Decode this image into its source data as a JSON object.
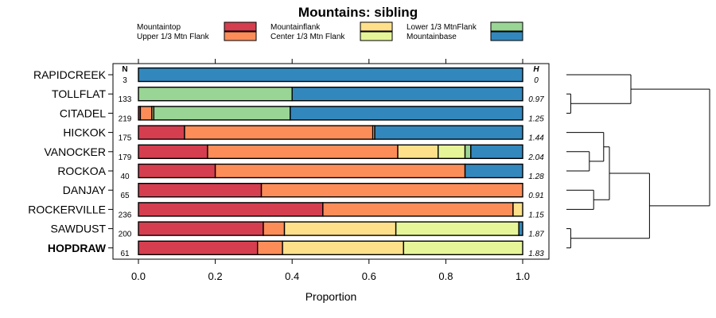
{
  "chart_data": {
    "type": "bar",
    "stacked": true,
    "orientation": "horizontal",
    "title": "Mountains: sibling",
    "xlabel": "Proportion",
    "xlim": [
      0,
      1
    ],
    "xticks": [
      "0.0",
      "0.2",
      "0.4",
      "0.6",
      "0.8",
      "1.0"
    ],
    "n_header": "N",
    "h_header": "H",
    "legend": [
      {
        "name": "Mountaintop",
        "color": "#d53e4f"
      },
      {
        "name": "Upper 1/3 Mtn Flank",
        "color": "#fc8d59"
      },
      {
        "name": "Mountainflank",
        "color": "#fee08b"
      },
      {
        "name": "Center 1/3 Mtn Flank",
        "color": "#e6f598"
      },
      {
        "name": "Lower 1/3 MtnFlank",
        "color": "#99d594"
      },
      {
        "name": "Mountainbase",
        "color": "#3288bd"
      }
    ],
    "categories": [
      "RAPIDCREEK",
      "TOLLFLAT",
      "CITADEL",
      "HICKOK",
      "VANOCKER",
      "ROCKOA",
      "DANJAY",
      "ROCKERVILLE",
      "SAWDUST",
      "HOPDRAW"
    ],
    "highlighted": "HOPDRAW",
    "n": [
      "3",
      "133",
      "219",
      "175",
      "179",
      "40",
      "65",
      "236",
      "200",
      "61"
    ],
    "h": [
      "0",
      "0.97",
      "1.25",
      "1.44",
      "2.04",
      "1.28",
      "0.91",
      "1.15",
      "1.87",
      "1.83"
    ],
    "series": [
      {
        "name": "Mountaintop",
        "values": [
          0,
          0,
          0.005,
          0.12,
          0.18,
          0.2,
          0.32,
          0.48,
          0.325,
          0.31
        ]
      },
      {
        "name": "Upper 1/3 Mtn Flank",
        "values": [
          0,
          0,
          0.03,
          0.49,
          0.495,
          0.65,
          0.68,
          0.495,
          0.055,
          0.065
        ]
      },
      {
        "name": "Mountainflank",
        "values": [
          0,
          0,
          0.005,
          0.005,
          0.105,
          0,
          0,
          0.025,
          0.29,
          0.315
        ]
      },
      {
        "name": "Center 1/3 Mtn Flank",
        "values": [
          0,
          0,
          0,
          0,
          0.07,
          0,
          0,
          0,
          0.32,
          0.31
        ]
      },
      {
        "name": "Lower 1/3 MtnFlank",
        "values": [
          0,
          0.4,
          0.355,
          0,
          0.015,
          0,
          0,
          0,
          0,
          0
        ]
      },
      {
        "name": "Mountainbase",
        "values": [
          1.0,
          0.6,
          0.605,
          0.385,
          0.135,
          0.15,
          0,
          0,
          0.01,
          0
        ]
      }
    ],
    "dendrogram": [
      {
        "a": 0,
        "b": 1,
        "h": 0.16
      },
      {
        "a": 1,
        "b": 2,
        "h": 0.03
      },
      {
        "a": 3,
        "b": 4,
        "h": 0.6
      },
      {
        "a": 4,
        "b": 5,
        "h": 0.3
      },
      {
        "a": 6,
        "b": 7,
        "h": 0.3
      },
      {
        "a": 8,
        "b": 9,
        "h": 0.04
      }
    ]
  }
}
